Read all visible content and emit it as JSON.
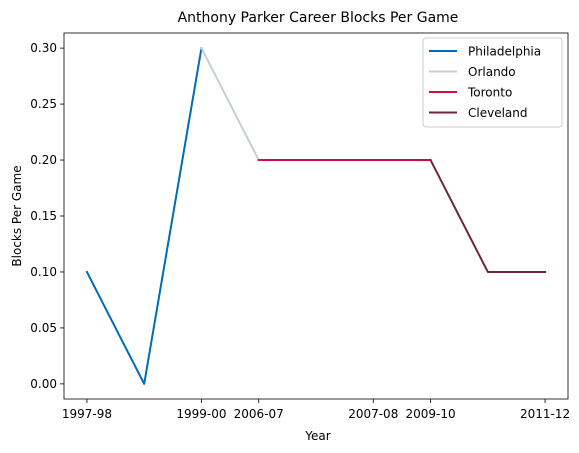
{
  "chart_data": {
    "type": "line",
    "title": "Anthony Parker Career Blocks Per Game",
    "xlabel": "Year",
    "ylabel": "Blocks Per Game",
    "xticks": [
      "1997-98",
      "1999-00",
      "2006-07",
      "2007-08",
      "2009-10",
      "2011-12"
    ],
    "xtick_positions": [
      0,
      2,
      3,
      5,
      6,
      8
    ],
    "ylim": [
      -0.0135,
      0.3135
    ],
    "yticks": [
      0.0,
      0.05,
      0.1,
      0.15,
      0.2,
      0.25,
      0.3
    ],
    "ytick_labels": [
      "0.00",
      "0.05",
      "0.10",
      "0.15",
      "0.20",
      "0.25",
      "0.30"
    ],
    "xlim": [
      -0.4,
      8.4
    ],
    "grid": false,
    "legend_position": "top-right",
    "series": [
      {
        "name": "Philadelphia",
        "color": "#006BB6",
        "x": [
          0,
          1,
          2
        ],
        "y": [
          0.1,
          0.0,
          0.3
        ]
      },
      {
        "name": "Orlando",
        "color": "#C4CED4",
        "x": [
          2,
          3
        ],
        "y": [
          0.3,
          0.2
        ]
      },
      {
        "name": "Toronto",
        "color": "#CE1141",
        "x": [
          3,
          4,
          5,
          6
        ],
        "y": [
          0.2,
          0.2,
          0.2,
          0.2
        ]
      },
      {
        "name": "Cleveland",
        "color": "#6F263D",
        "x": [
          6,
          7,
          8
        ],
        "y": [
          0.2,
          0.1,
          0.1
        ]
      }
    ]
  }
}
